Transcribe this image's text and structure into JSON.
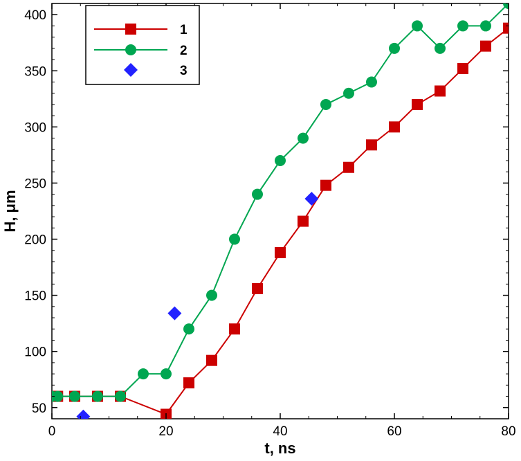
{
  "chart_data": {
    "type": "line",
    "title": "",
    "xlabel": "t, ns",
    "ylabel": "H, μm",
    "xlim": [
      0,
      80
    ],
    "ylim": [
      40,
      410
    ],
    "xticks": [
      0,
      20,
      40,
      60,
      80
    ],
    "yticks": [
      50,
      100,
      150,
      200,
      250,
      300,
      350,
      400
    ],
    "grid": false,
    "legend": "top-left",
    "series": [
      {
        "name": "1",
        "marker": "square",
        "color": "#cc0000",
        "line": true,
        "x": [
          0,
          1,
          4,
          8,
          12,
          20,
          24,
          28,
          32,
          36,
          40,
          44,
          48,
          52,
          56,
          60,
          64,
          68,
          72,
          76,
          80
        ],
        "y": [
          60,
          60,
          60,
          60,
          60,
          44,
          72,
          92,
          120,
          156,
          188,
          216,
          248,
          264,
          284,
          300,
          320,
          332,
          352,
          372,
          388
        ]
      },
      {
        "name": "2",
        "marker": "circle",
        "color": "#00a651",
        "line": true,
        "x": [
          0,
          1,
          4,
          8,
          12,
          16,
          20,
          24,
          28,
          32,
          36,
          40,
          44,
          48,
          52,
          56,
          60,
          64,
          68,
          72,
          76,
          80
        ],
        "y": [
          60,
          60,
          60,
          60,
          60,
          80,
          80,
          120,
          150,
          200,
          240,
          270,
          290,
          320,
          330,
          340,
          370,
          390,
          370,
          390,
          390,
          410
        ]
      },
      {
        "name": "3",
        "marker": "diamond",
        "color": "#2222ff",
        "line": false,
        "x": [
          5.5,
          21.5,
          45.5
        ],
        "y": [
          42,
          134,
          236
        ]
      }
    ]
  }
}
